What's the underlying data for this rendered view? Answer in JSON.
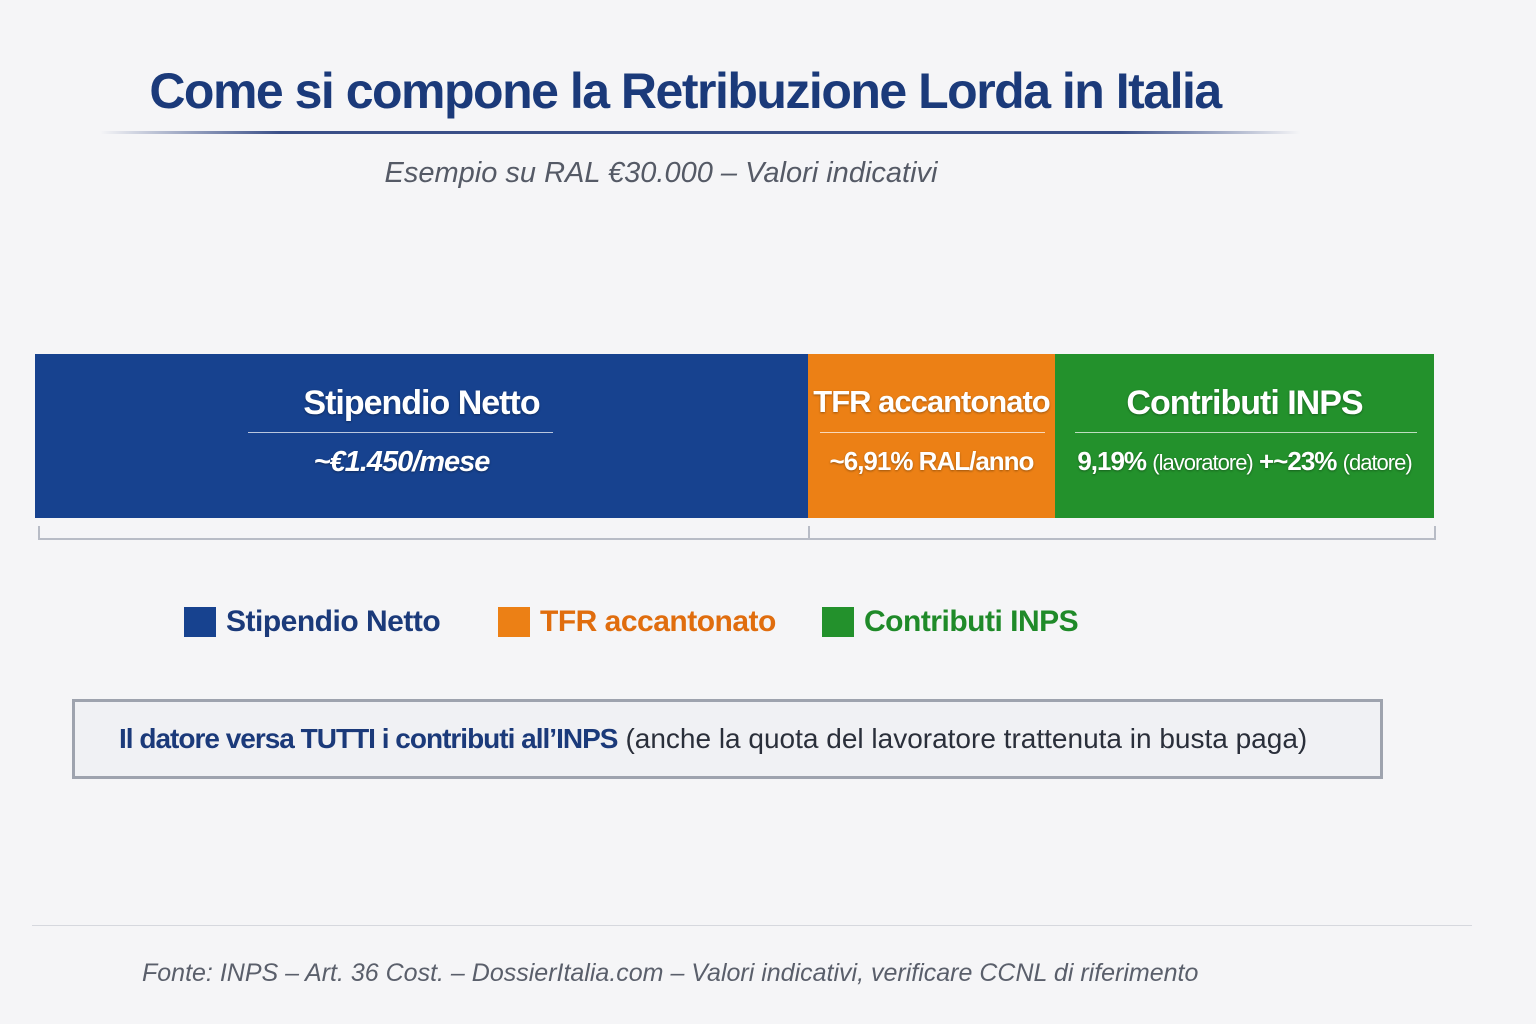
{
  "header": {
    "title": "Come si compone la Retribuzione Lorda in Italia",
    "subtitle": "Esempio su RAL €30.000 – Valori indicativi"
  },
  "segments": [
    {
      "label": "Stipendio Netto",
      "value": [
        "~€1.450/mese"
      ]
    },
    {
      "label": "TFR accantonato",
      "value": [
        "~6,91% RAL/anno"
      ]
    },
    {
      "label": "Contributi INPS",
      "value": [
        "9,19%",
        "(lavoratore)",
        "+~23%",
        "(datore)"
      ]
    }
  ],
  "legend": [
    "Stipendio Netto",
    "TFR accantonato",
    "Contributi INPS"
  ],
  "note": {
    "bold": "Il datore versa TUTTI i contributi all’INPS",
    "text": "(anche la quota del lavoratore trattenuta in busta paga)"
  },
  "footer": "Fonte: INPS – Art. 36 Cost. – DossierItalia.com – Valori indicativi, verificare CCNL di riferimento"
}
